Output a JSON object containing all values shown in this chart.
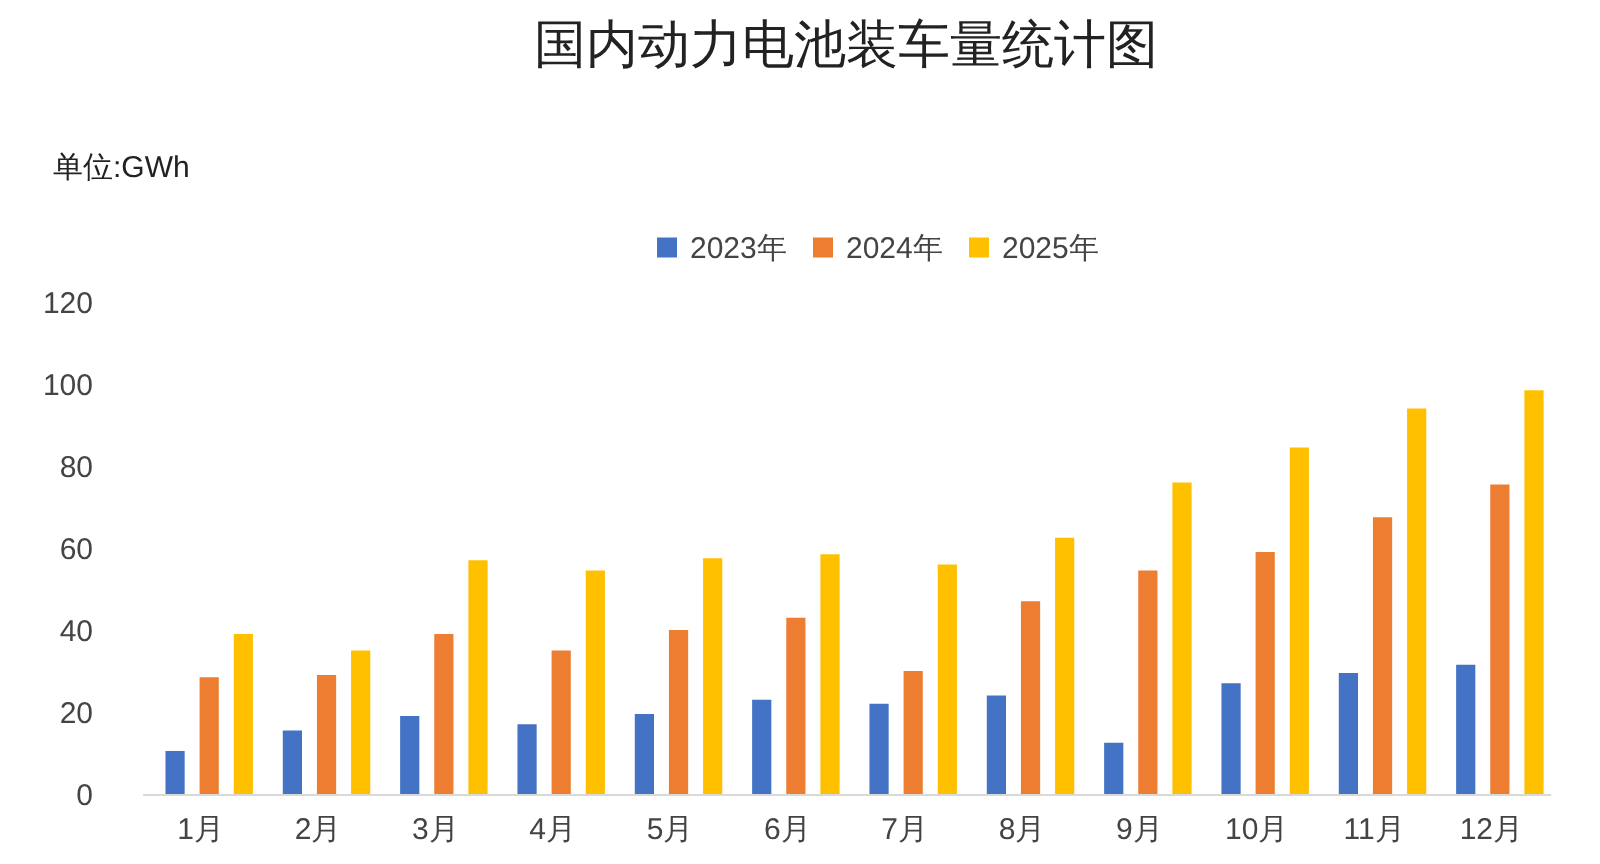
{
  "chart_data": {
    "type": "bar",
    "title": "国内动力电池装车量统计图",
    "ylabel": "单位:GWh",
    "categories": [
      "1月",
      "2月",
      "3月",
      "4月",
      "5月",
      "6月",
      "7月",
      "8月",
      "9月",
      "10月",
      "11月",
      "12月"
    ],
    "series": [
      {
        "name": "2023年",
        "color": "#4472c4",
        "values": [
          10.5,
          15.5,
          19,
          17,
          19.5,
          23,
          22,
          24,
          12.5,
          27,
          29.5,
          31.5
        ]
      },
      {
        "name": "2024年",
        "color": "#ed7d31",
        "values": [
          28.5,
          29,
          39,
          35,
          40,
          43,
          30,
          47,
          54.5,
          59,
          67.5,
          75.5
        ]
      },
      {
        "name": "2025年",
        "color": "#ffc000",
        "values": [
          39,
          35,
          57,
          54.5,
          57.5,
          58.5,
          56,
          62.5,
          76,
          84.5,
          94,
          98.5
        ]
      }
    ],
    "ylim": [
      0,
      120
    ],
    "yticks": [
      0,
      20,
      40,
      60,
      80,
      100,
      120
    ],
    "grid": false,
    "legend": "top"
  }
}
